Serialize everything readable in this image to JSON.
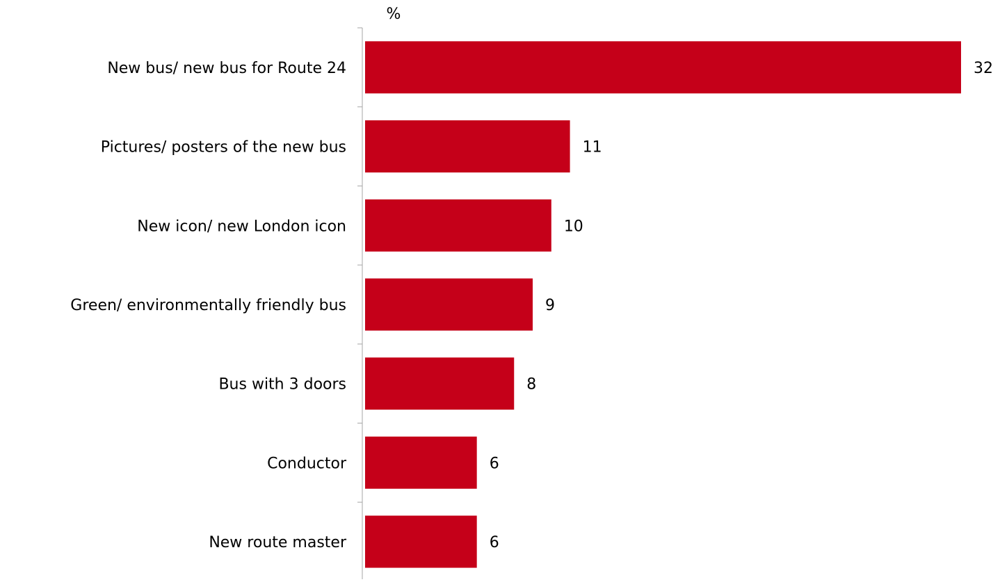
{
  "chart_data": {
    "type": "bar",
    "orientation": "horizontal",
    "unit_label": "%",
    "categories": [
      "New bus/ new bus for Route 24",
      "Pictures/ posters of the new bus",
      "New icon/ new London icon",
      "Green/ environmentally friendly bus",
      "Bus with 3 doors",
      "Conductor",
      "New route master"
    ],
    "values": [
      32,
      11,
      10,
      9,
      8,
      6,
      6
    ],
    "data_labels": [
      "32",
      "11",
      "10",
      "9",
      "8",
      "6",
      "6"
    ],
    "xlim": [
      0,
      32
    ],
    "grid": false,
    "legend": "none",
    "colors": {
      "bar": "#c50019",
      "axis": "#a6a6a6",
      "text": "#000000"
    }
  }
}
